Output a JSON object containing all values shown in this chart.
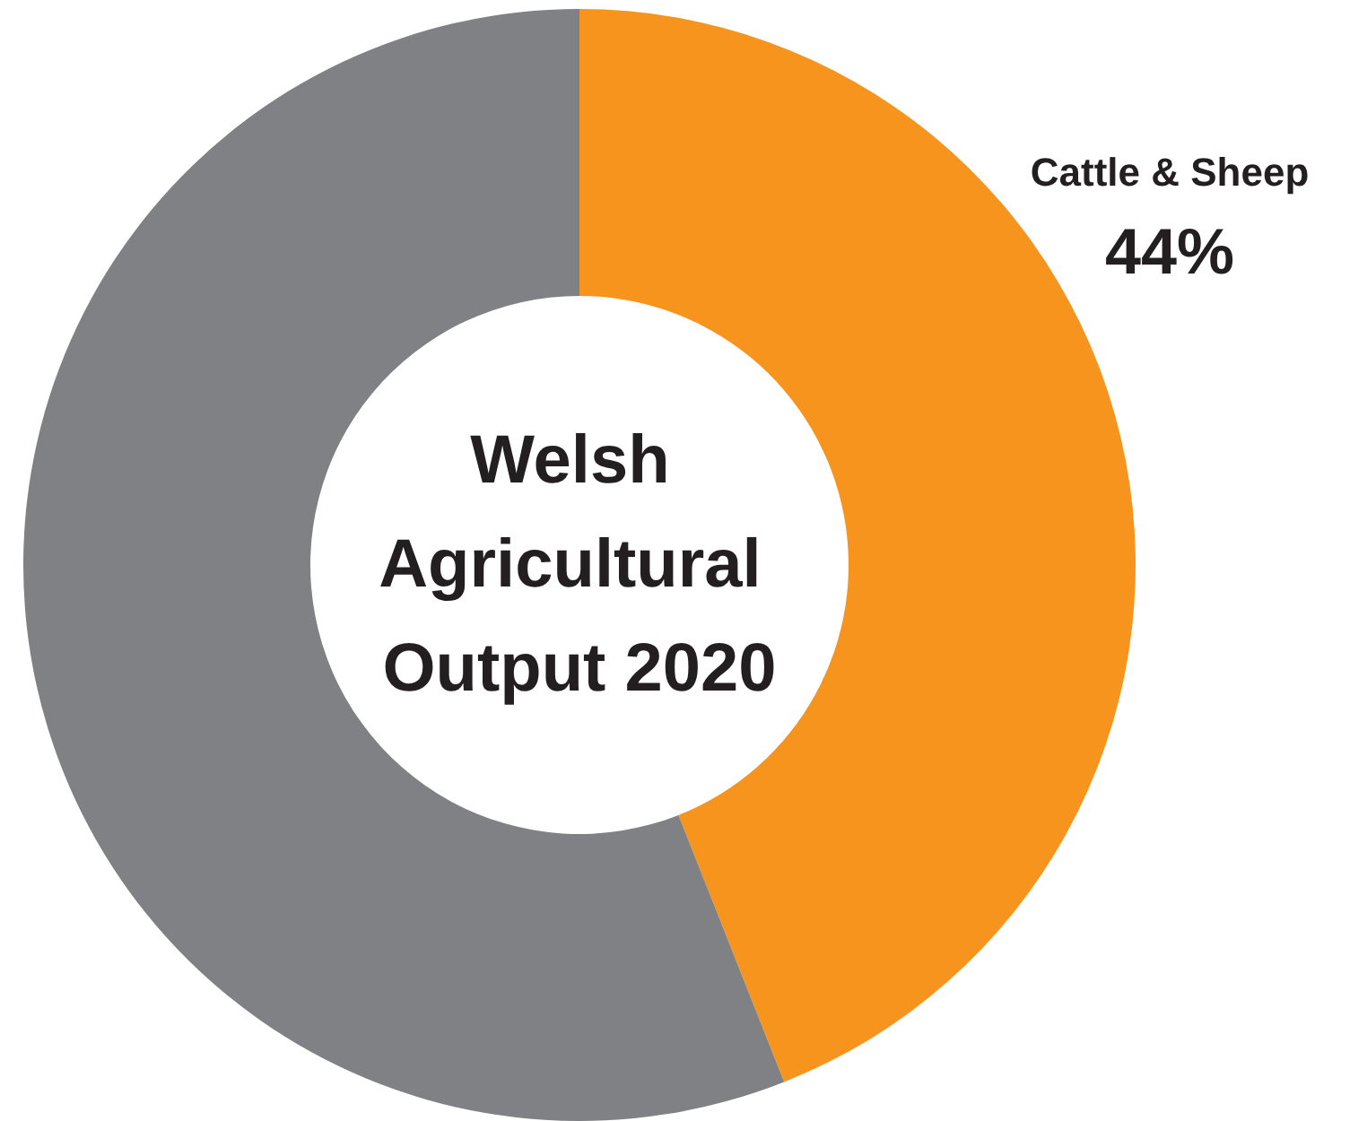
{
  "chart_data": {
    "type": "donut",
    "title": "Welsh Agricultural Output 2020",
    "categories": [
      "Cattle & Sheep",
      null
    ],
    "values": [
      44,
      56
    ],
    "colors": [
      "#f7941d",
      "#808184"
    ],
    "value_labels": [
      "44%",
      null
    ],
    "legend": false
  }
}
